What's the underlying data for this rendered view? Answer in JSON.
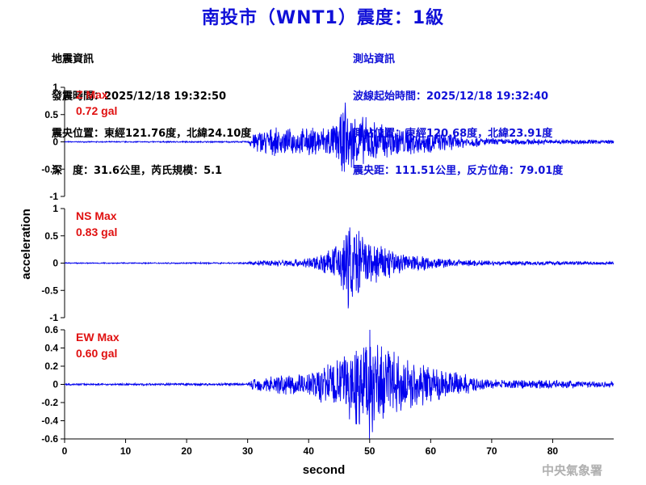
{
  "title": "南投市（WNT1）震度：1級",
  "quake_info": {
    "heading": "地震資訊",
    "origin_time": "發震時間：2025/12/18 19:32:50",
    "epicenter": "震央位置：東經121.76度，北緯24.10度",
    "depth_magnitude": "深　度：31.6公里，芮氏規模：5.1"
  },
  "station_info": {
    "heading": "測站資訊",
    "wave_start": "波線起始時間：2025/12/18 19:32:40",
    "location": "測站位置：東經120.68度，北緯23.91度",
    "distance_azimuth": "震央距：111.51公里，反方位角：79.01度"
  },
  "footer": "中央氣象署",
  "colors": {
    "trace": "#0000ee",
    "max_label": "#e01010",
    "title": "#1010d8",
    "footer": "#b0b0b0"
  },
  "chart_data": [
    {
      "type": "line",
      "component": "Z",
      "max_name": "Z Max",
      "max_value": "0.72 gal",
      "peak": 0.72,
      "ylim": [
        -1,
        1
      ],
      "yticks": [
        1,
        0.5,
        0,
        -0.5,
        -1
      ],
      "ytick_labels": [
        "1",
        "0.5",
        "0",
        "-0.5",
        "-1"
      ],
      "xlim": [
        0,
        90
      ],
      "envelope": [
        [
          0,
          0.01
        ],
        [
          30,
          0.015
        ],
        [
          31,
          0.2
        ],
        [
          33,
          0.28
        ],
        [
          36,
          0.25
        ],
        [
          40,
          0.28
        ],
        [
          44,
          0.35
        ],
        [
          46,
          0.66
        ],
        [
          47,
          0.6
        ],
        [
          50,
          0.45
        ],
        [
          55,
          0.3
        ],
        [
          60,
          0.22
        ],
        [
          65,
          0.13
        ],
        [
          70,
          0.07
        ],
        [
          80,
          0.05
        ],
        [
          90,
          0.04
        ]
      ]
    },
    {
      "type": "line",
      "component": "NS",
      "max_name": "NS Max",
      "max_value": "0.83 gal",
      "peak": 0.83,
      "ylim": [
        -1,
        1
      ],
      "yticks": [
        1,
        0.5,
        0,
        -0.5,
        -1
      ],
      "ytick_labels": [
        "1",
        "0.5",
        "0",
        "-0.5",
        "-1"
      ],
      "xlim": [
        0,
        90
      ],
      "envelope": [
        [
          0,
          0.01
        ],
        [
          30,
          0.015
        ],
        [
          31,
          0.05
        ],
        [
          35,
          0.07
        ],
        [
          40,
          0.1
        ],
        [
          44,
          0.3
        ],
        [
          45,
          0.55
        ],
        [
          46.5,
          0.8
        ],
        [
          48,
          0.75
        ],
        [
          50,
          0.45
        ],
        [
          55,
          0.25
        ],
        [
          60,
          0.12
        ],
        [
          65,
          0.07
        ],
        [
          70,
          0.05
        ],
        [
          80,
          0.04
        ],
        [
          90,
          0.03
        ]
      ]
    },
    {
      "type": "line",
      "component": "EW",
      "max_name": "EW Max",
      "max_value": "0.60 gal",
      "peak": 0.6,
      "ylim": [
        -0.6,
        0.6
      ],
      "yticks": [
        0.6,
        0.4,
        0.2,
        0,
        -0.2,
        -0.4,
        -0.6
      ],
      "ytick_labels": [
        "0.6",
        "0.4",
        "0.2",
        "0",
        "-0.2",
        "-0.4",
        "-0.6"
      ],
      "xlim": [
        0,
        90
      ],
      "envelope": [
        [
          0,
          0.01
        ],
        [
          30,
          0.015
        ],
        [
          31,
          0.08
        ],
        [
          35,
          0.12
        ],
        [
          40,
          0.15
        ],
        [
          44,
          0.3
        ],
        [
          47,
          0.45
        ],
        [
          50,
          0.58
        ],
        [
          53,
          0.4
        ],
        [
          57,
          0.28
        ],
        [
          62,
          0.18
        ],
        [
          67,
          0.1
        ],
        [
          70,
          0.06
        ],
        [
          80,
          0.05
        ],
        [
          90,
          0.04
        ]
      ]
    }
  ],
  "x_axis": {
    "label": "second",
    "ticks": [
      0,
      10,
      20,
      30,
      40,
      50,
      60,
      70,
      80
    ],
    "tick_labels": [
      "0",
      "10",
      "20",
      "30",
      "40",
      "50",
      "60",
      "70",
      "80"
    ]
  },
  "y_axis": {
    "label": "acceleration"
  }
}
